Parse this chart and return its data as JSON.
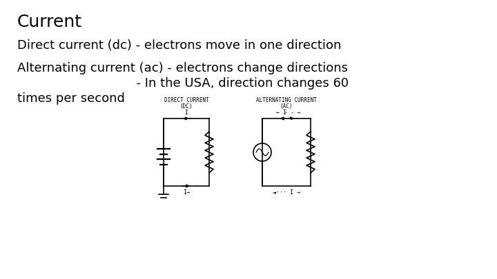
{
  "title": "Current",
  "line1": "Direct current (dc) - electrons move in one direction",
  "line2": "Alternating current (ac) - electrons change directions",
  "line3": "                              - In the USA, direction changes 60",
  "line4": "times per second",
  "bg_color": "#ffffff",
  "text_color": "#000000",
  "title_fontsize": 18,
  "body_fontsize": 13,
  "diagram_label_fontsize": 5.5,
  "diagram_arrow_fontsize": 6,
  "font_family": "DejaVu Sans"
}
